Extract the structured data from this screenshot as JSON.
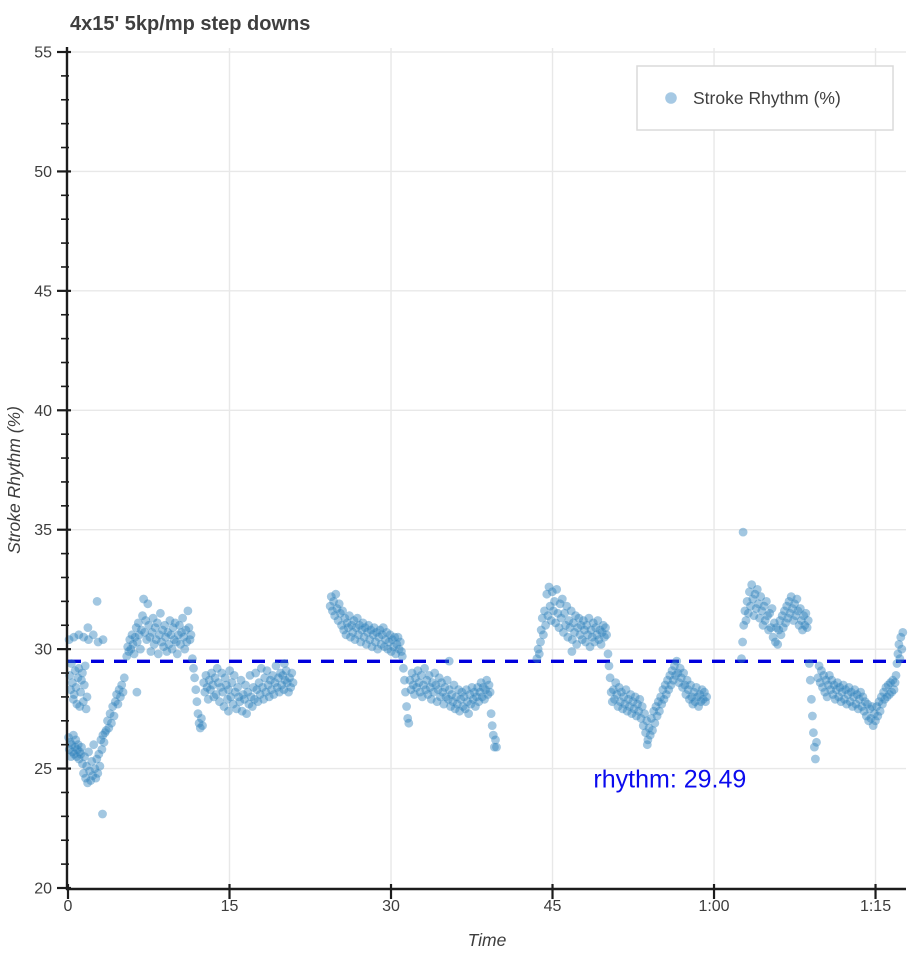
{
  "title": "4x15' 5kp/mp step downs",
  "legend": {
    "label": "Stroke Rhythm (%)",
    "marker_color": "#a6c9e4",
    "position": "upper right"
  },
  "annotation": {
    "label": "rhythm:",
    "value": "29.49",
    "text": "rhythm:  29.49",
    "color": "#0b0bee"
  },
  "mean_line": {
    "value": 29.49,
    "color": "#0000dd"
  },
  "colors": {
    "point": "#3182bd",
    "point_opacity": 0.45,
    "grid": "#e8e8e8",
    "spine": "#1c1c1c",
    "tick_label": "#3d3d3d",
    "title": "#3f3f3f",
    "legend_border": "#dadada"
  },
  "chart_data": {
    "type": "scatter",
    "title": "4x15' 5kp/mp step downs",
    "xlabel": "Time",
    "ylabel": "Stroke Rhythm (%)",
    "xlim": [
      0,
      77.83
    ],
    "ylim": [
      20,
      55
    ],
    "grid": true,
    "legend_position": "upper right",
    "x_ticks": [
      {
        "t": 0,
        "label": "0"
      },
      {
        "t": 15,
        "label": "15"
      },
      {
        "t": 30,
        "label": "30"
      },
      {
        "t": 45,
        "label": "45"
      },
      {
        "t": 60,
        "label": "1:00"
      },
      {
        "t": 75,
        "label": "1:15"
      }
    ],
    "y_ticks": [
      {
        "v": 20,
        "label": "20"
      },
      {
        "v": 25,
        "label": "25"
      },
      {
        "v": 30,
        "label": "30"
      },
      {
        "v": 35,
        "label": "35"
      },
      {
        "v": 40,
        "label": "40"
      },
      {
        "v": 45,
        "label": "45"
      },
      {
        "v": 50,
        "label": "50"
      },
      {
        "v": 55,
        "label": "55"
      }
    ],
    "y_minor_step": 1,
    "mean_line": {
      "value": 29.49,
      "color": "#0000dd",
      "dash": [
        13,
        10
      ],
      "width": 3.4
    },
    "annotation": {
      "text": "rhythm:  29.49",
      "t": 48.8,
      "v": 24.2,
      "color": "#0b0bee",
      "font_size": 25
    },
    "series": [
      {
        "name": "Stroke Rhythm (%)",
        "point_color": "#3182bd",
        "opacity": 0.45,
        "radius": 4.4,
        "segments": [
          {
            "t0": 0.1,
            "dt": 0.45,
            "values": [
              30.4,
              30.5,
              30.6,
              30.5,
              30.4,
              30.6,
              30.3,
              30.4
            ]
          },
          {
            "t0": 0.15,
            "dt": 0.085,
            "values": [
              28.9,
              28.3,
              29.4,
              28.6,
              27.9,
              28.1,
              29.1,
              28.4,
              27.7,
              28.8,
              29.2,
              27.6,
              28.2,
              28.7,
              29.0,
              27.8,
              28.5,
              29.3,
              27.5,
              28.0
            ]
          },
          {
            "t0": 0.05,
            "dt": 0.075,
            "values": [
              26.3,
              25.8,
              26.1,
              25.5,
              26.0,
              25.7,
              26.4,
              25.6,
              25.9,
              26.2,
              25.5,
              25.8,
              26.0,
              25.4,
              25.7,
              25.6
            ]
          },
          {
            "t0": 1.25,
            "dt": 0.095,
            "values": [
              25.9,
              25.2,
              24.8,
              25.5,
              24.6,
              25.1,
              24.4,
              25.7,
              24.9,
              24.5,
              25.3,
              24.7,
              26.0,
              25.0,
              24.6,
              25.4,
              24.8,
              25.6,
              25.1,
              26.2,
              25.8,
              26.4,
              26.1,
              26.5
            ]
          },
          {
            "t0": 3.55,
            "dt": 0.12,
            "values": [
              26.6,
              27.0,
              26.7,
              27.3,
              26.9,
              27.6,
              27.2,
              27.8,
              28.1,
              27.7,
              28.3,
              28.0,
              28.5,
              28.2,
              28.8
            ]
          },
          {
            "t0": 5.45,
            "dt": 0.098,
            "values": [
              29.7,
              30.1,
              29.9,
              30.4,
              30.0,
              30.6,
              30.2,
              29.8,
              30.5,
              30.9,
              30.3,
              31.1,
              30.6,
              30.0,
              30.8,
              31.4,
              32.1,
              30.7,
              31.2,
              30.4,
              31.9,
              31.0,
              30.5,
              29.9,
              30.7,
              31.3,
              30.2,
              30.9,
              30.4,
              31.1,
              29.8,
              30.6,
              31.5,
              30.3,
              30.8,
              30.1,
              31.0,
              30.5,
              29.9,
              30.7,
              30.2,
              31.2,
              30.6,
              30.0,
              30.9,
              30.4,
              31.1,
              30.3,
              29.8,
              30.6,
              31.0,
              30.2,
              30.7,
              31.3,
              30.5,
              30.0,
              30.8,
              30.3,
              31.6,
              30.9,
              30.4,
              30.6
            ]
          },
          {
            "t0": 11.55,
            "dt": 0.105,
            "values": [
              29.6,
              29.2,
              28.8,
              28.3,
              27.8,
              27.3,
              26.9,
              26.7,
              27.1,
              26.8
            ]
          },
          {
            "t0": 12.6,
            "dt": 0.105,
            "values": [
              28.6,
              28.2,
              28.9,
              28.4,
              27.9,
              28.7,
              28.3,
              29.0,
              28.5,
              28.0,
              28.8,
              28.1,
              29.2,
              28.6,
              27.8,
              28.4,
              29.0,
              28.2,
              27.6,
              28.8,
              28.5,
              27.9,
              28.3,
              29.1,
              28.0,
              28.6,
              27.7,
              28.9,
              28.2,
              27.5,
              28.4,
              28.0,
              27.8,
              28.7,
              27.4,
              28.1,
              27.9,
              28.5,
              27.3,
              28.2,
              27.7,
              28.9,
              28.0,
              27.6,
              28.4,
              27.9,
              29.0,
              28.3,
              27.8,
              28.6,
              28.1,
              29.2,
              28.4,
              27.9,
              28.8,
              28.2,
              29.1,
              28.5,
              28.0,
              28.7,
              28.3,
              28.9,
              28.1,
              28.6,
              29.3,
              28.4,
              28.8,
              28.2,
              29.0,
              28.5,
              28.9,
              28.3,
              28.7,
              29.1,
              28.6,
              28.2,
              28.8,
              28.4,
              29.0,
              28.6
            ]
          },
          {
            "t0": 24.35,
            "dt": 0.105,
            "values": [
              31.8,
              32.2,
              31.6,
              32.0,
              31.4,
              32.3,
              31.7,
              31.2,
              31.9,
              31.5,
              31.0,
              31.6,
              30.8,
              31.3,
              30.6,
              31.1,
              30.9,
              31.4,
              30.5,
              31.0,
              30.7,
              31.2,
              30.4,
              30.9,
              31.3,
              30.6,
              31.0,
              30.3,
              30.8,
              31.1,
              30.5,
              30.9,
              30.2,
              30.7,
              31.0,
              30.4,
              30.8,
              30.1,
              30.6,
              30.9,
              30.3,
              30.7,
              30.0,
              30.5,
              30.8,
              30.2,
              30.6,
              30.9,
              30.1,
              30.4,
              30.7,
              30.0,
              30.3,
              30.6,
              29.9,
              30.4,
              30.1,
              30.5,
              29.8,
              30.2,
              30.5,
              30.0,
              30.3,
              29.9
            ]
          },
          {
            "t0": 31.05,
            "dt": 0.1,
            "values": [
              29.7,
              29.2,
              28.7,
              28.2,
              27.6,
              27.1,
              26.9
            ]
          },
          {
            "t0": 31.75,
            "dt": 0.105,
            "values": [
              28.7,
              28.3,
              29.0,
              28.5,
              28.1,
              28.8,
              28.4,
              29.1,
              28.6,
              28.2,
              28.9,
              28.0,
              28.5,
              29.2,
              28.3,
              28.7,
              28.1,
              28.9,
              28.4,
              27.9,
              28.6,
              28.2,
              29.0,
              28.5,
              27.8,
              28.3,
              28.8,
              28.0,
              28.6,
              28.2,
              27.7,
              28.4,
              28.0,
              28.7,
              27.9,
              28.3,
              27.6,
              28.1,
              27.8,
              28.5,
              27.5,
              28.0,
              27.7,
              28.3,
              27.4,
              27.9,
              28.2,
              27.6,
              28.0,
              27.5,
              28.3,
              27.8,
              27.3,
              28.1,
              27.7,
              28.4,
              27.9,
              28.2,
              27.6,
              28.0,
              28.4,
              27.8,
              28.2,
              28.6,
              28.0,
              28.4,
              27.9,
              28.3,
              28.7,
              28.1,
              28.5,
              28.2
            ]
          },
          {
            "t0": 39.3,
            "dt": 0.1,
            "values": [
              27.3,
              26.8,
              26.4,
              25.9,
              26.2
            ]
          },
          {
            "t0": 43.55,
            "dt": 0.11,
            "values": [
              29.6,
              30.0,
              29.8,
              30.3
            ]
          },
          {
            "t0": 43.95,
            "dt": 0.103,
            "values": [
              30.8,
              31.3,
              30.6,
              31.6,
              31.0,
              32.3,
              31.4,
              32.6,
              31.8,
              31.2,
              32.4,
              31.6,
              32.0,
              31.1,
              32.5,
              31.5,
              30.9,
              31.9,
              31.3,
              32.1,
              30.7,
              31.5,
              31.0,
              31.8,
              30.5,
              31.2,
              30.9,
              31.6,
              30.4,
              31.1,
              30.7,
              31.4,
              30.2,
              30.9,
              31.3,
              30.6,
              31.0,
              30.4,
              31.2,
              30.8,
              30.3,
              31.0,
              30.6,
              31.3,
              30.1,
              30.8,
              30.5,
              31.1,
              30.3,
              30.9,
              30.6,
              31.2,
              30.4,
              30.8,
              30.2,
              30.7,
              31.0,
              30.5,
              30.9,
              30.6
            ]
          },
          {
            "t0": 50.15,
            "dt": 0.1,
            "values": [
              29.8,
              29.3,
              28.8,
              28.2,
              27.8
            ]
          },
          {
            "t0": 50.65,
            "dt": 0.107,
            "values": [
              28.3,
              27.9,
              28.6,
              28.1,
              27.6,
              28.4,
              27.8,
              28.2,
              27.5,
              28.0,
              27.7,
              28.3,
              27.4,
              27.9,
              27.6,
              28.1,
              27.3,
              27.8,
              27.5,
              28.0,
              27.2,
              27.7,
              27.4,
              27.9,
              27.1,
              27.6,
              26.8,
              27.3,
              26.5,
              27.0,
              26.2,
              26.7,
              26.4,
              27.1,
              26.6,
              27.4,
              26.9,
              27.6,
              27.2,
              27.8,
              27.4,
              28.0,
              27.7,
              28.3,
              27.9,
              28.5,
              28.1,
              28.7,
              28.3,
              28.9,
              28.5,
              29.1,
              28.7,
              29.3,
              28.9,
              29.5,
              29.0,
              28.6,
              29.2,
              28.8,
              28.4,
              29.0,
              28.5,
              28.1,
              28.7,
              28.3,
              27.9,
              28.5,
              28.0,
              27.7,
              28.2,
              27.8,
              28.4,
              28.0,
              27.6,
              28.1,
              27.8,
              28.3,
              27.9,
              28.2,
              27.8,
              28.0
            ]
          },
          {
            "t0": 62.55,
            "dt": 0.105,
            "values": [
              29.6,
              30.3,
              31.0,
              31.6,
              31.2,
              32.0,
              31.5,
              32.4,
              31.8,
              32.7,
              32.1,
              31.4,
              32.3,
              31.7,
              32.5,
              31.9,
              31.3,
              32.2,
              31.6,
              31.0,
              31.8,
              31.2,
              32.0,
              31.4,
              30.8,
              31.5,
              30.9,
              31.7,
              30.5,
              31.1,
              30.3,
              30.9,
              30.2,
              30.8,
              31.2,
              30.6,
              31.4,
              30.9,
              31.6,
              31.1,
              31.8,
              31.3,
              32.0,
              31.5,
              32.2,
              31.7,
              31.2,
              31.9,
              31.4,
              32.1,
              31.6,
              31.0,
              31.7,
              31.2,
              30.8,
              31.4,
              31.0,
              31.5,
              30.9,
              31.2
            ]
          },
          {
            "t0": 68.85,
            "dt": 0.095,
            "values": [
              29.4,
              28.7,
              27.9,
              27.2,
              26.5,
              25.9,
              25.4,
              26.1
            ]
          },
          {
            "t0": 69.65,
            "dt": 0.107,
            "values": [
              28.8,
              29.3,
              28.6,
              29.1,
              28.4,
              28.9,
              28.2,
              28.7,
              28.0,
              28.5,
              28.9,
              28.3,
              28.7,
              28.1,
              28.5,
              27.9,
              28.3,
              28.6,
              28.0,
              28.4,
              27.8,
              28.2,
              28.5,
              27.9,
              28.3,
              27.7,
              28.1,
              28.4,
              27.8,
              28.2,
              27.6,
              28.0,
              28.3,
              27.7,
              28.1,
              27.5,
              27.9,
              28.2,
              27.6,
              28.0,
              27.4,
              27.8,
              27.2,
              27.7,
              27.0,
              27.5,
              27.1,
              27.6,
              26.8,
              27.3,
              27.0,
              27.6,
              27.2,
              27.8,
              27.4,
              28.0,
              27.7,
              28.2,
              27.9,
              28.4,
              28.0,
              28.5,
              28.1,
              28.6,
              28.2,
              28.7,
              28.3,
              28.6
            ]
          },
          {
            "t0": 76.9,
            "dt": 0.09,
            "values": [
              28.9,
              29.4,
              29.8,
              30.2,
              29.6,
              30.5,
              30.0,
              30.7
            ]
          }
        ],
        "extra_points": [
          [
            1.85,
            30.9
          ],
          [
            2.7,
            32.0
          ],
          [
            3.2,
            23.1
          ],
          [
            6.4,
            28.2
          ],
          [
            14.9,
            27.4
          ],
          [
            20.1,
            29.4
          ],
          [
            35.4,
            29.5
          ],
          [
            39.8,
            25.9
          ],
          [
            46.8,
            29.9
          ],
          [
            53.8,
            26.0
          ],
          [
            62.7,
            34.9
          ]
        ]
      }
    ]
  }
}
